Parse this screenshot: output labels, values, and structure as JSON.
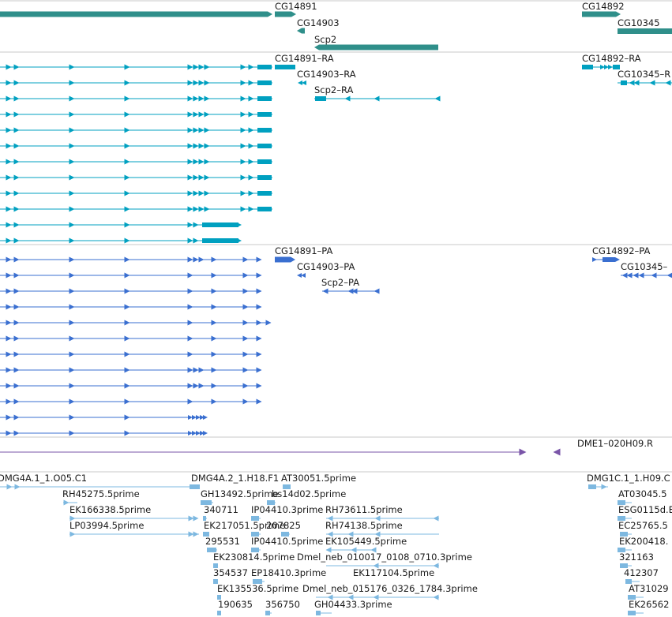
{
  "colors": {
    "gene": "#2f8f8a",
    "transcript_ra": "#00a0c0",
    "transcript_pa": "#3a6fd0",
    "clone": "#7a55a8",
    "est": "#7db8e0",
    "divider": "#c8c8c8"
  },
  "tracks": {
    "genes": {
      "labels": [
        "CG14891",
        "CG14903",
        "Scp2",
        "CG14892",
        "CG10345"
      ]
    },
    "transcripts_ra": {
      "labels": [
        "CG14891–RA",
        "CG14903–RA",
        "Scp2–RA",
        "CG14892–RA",
        "CG10345–R"
      ]
    },
    "transcripts_pa": {
      "labels": [
        "CG14891–PA",
        "CG14903–PA",
        "Scp2–PA",
        "CG14892–PA",
        "CG10345–"
      ]
    },
    "clones": {
      "labels": [
        "DME1–020H09.R"
      ]
    },
    "ests": {
      "labels": [
        "DMG4A.1_1.O05.C1",
        "DMG4A.2_1.H18.F1",
        "AT30051.5prime",
        "DMG1C.1_1.H09.C",
        "RH45275.5prime",
        "GH13492.5prime",
        "bs14d02.5prime",
        "AT03045.5",
        "EK166338.5prime",
        "340711",
        "IP04410.3prime",
        "RH73611.5prime",
        "ESG0115d.E",
        "LP03994.5prime",
        "EK217051.5prime",
        "207825",
        "RH74138.5prime",
        "EC25765.5",
        "295531",
        "IP04410.5prime",
        "EK105449.5prime",
        "EK200418.",
        "EK230814.5prime",
        "Dmel_neb_010017_0108_0710.3prime",
        "321163",
        "354537",
        "EP18410.3prime",
        "EK117104.5prime",
        "412307",
        "EK135536.5prime",
        "Dmel_neb_015176_0326_1784.3prime",
        "AT31029",
        "190635",
        "356750",
        "GH04433.3prime",
        "EK26562"
      ]
    }
  }
}
